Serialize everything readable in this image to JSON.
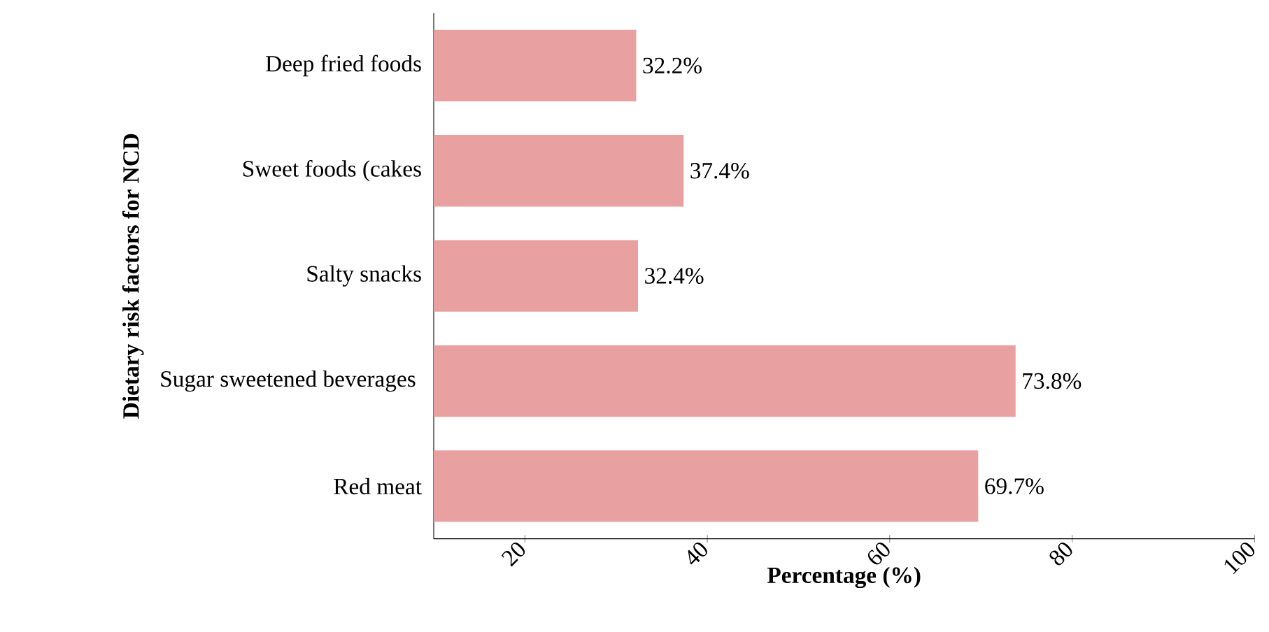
{
  "chart_data": {
    "type": "bar",
    "orientation": "horizontal",
    "xlabel": "Percentage (%)",
    "ylabel": "Dietary risk factors for NCD",
    "categories": [
      "Deep fried foods",
      "Sweet foods (cakes",
      "Salty snacks",
      "Sugar sweetened beverages ",
      "Red meat"
    ],
    "values": [
      32.2,
      37.4,
      32.4,
      73.8,
      69.7
    ],
    "value_labels": [
      "32.2%",
      "37.4%",
      "32.4%",
      "73.8%",
      "69.7%"
    ],
    "color": "#e8a0a0",
    "xlim": [
      10,
      100
    ],
    "xticks": [
      20,
      40,
      60,
      80,
      100
    ]
  }
}
